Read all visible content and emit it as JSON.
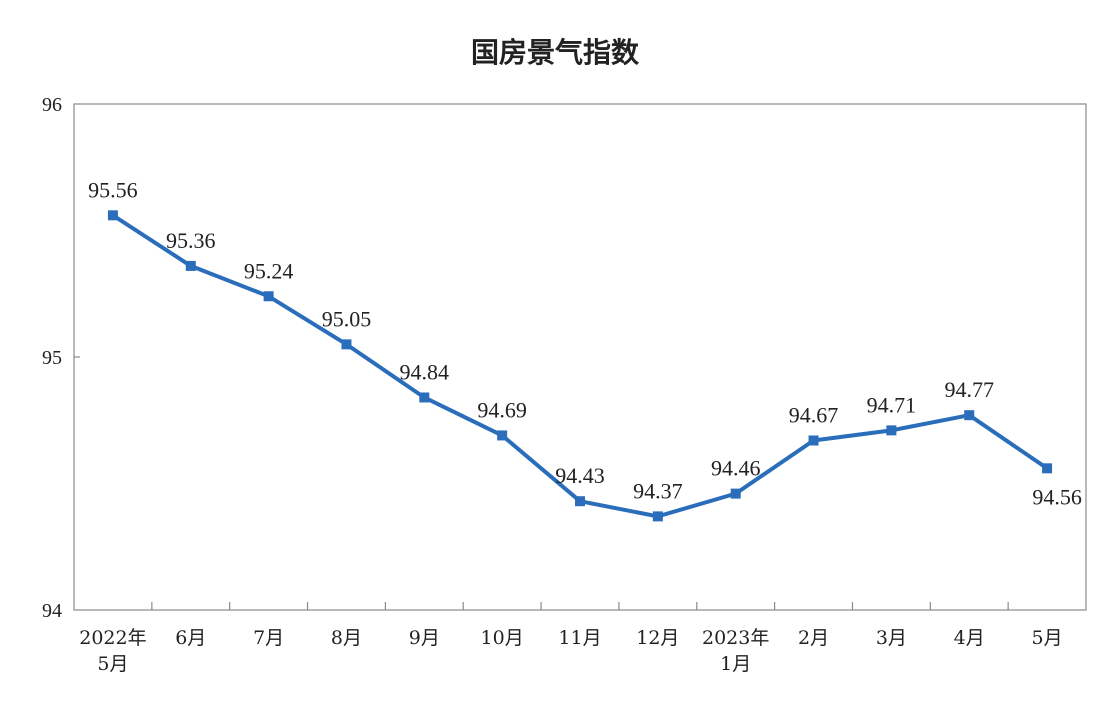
{
  "chart_data": {
    "type": "line",
    "title": "国房景气指数",
    "xlabel": "",
    "ylabel": "",
    "ylim": [
      94,
      96
    ],
    "yticks": [
      "94",
      "95",
      "96"
    ],
    "grid": false,
    "legend": "none",
    "categories": [
      [
        "2022年",
        "5月"
      ],
      [
        "6月"
      ],
      [
        "7月"
      ],
      [
        "8月"
      ],
      [
        "9月"
      ],
      [
        "10月"
      ],
      [
        "11月"
      ],
      [
        "12月"
      ],
      [
        "2023年",
        "1月"
      ],
      [
        "2月"
      ],
      [
        "3月"
      ],
      [
        "4月"
      ],
      [
        "5月"
      ]
    ],
    "series": [
      {
        "values": [
          95.56,
          95.36,
          95.24,
          95.05,
          94.84,
          94.69,
          94.43,
          94.37,
          94.46,
          94.67,
          94.71,
          94.77,
          94.56
        ],
        "labels": [
          "95.56",
          "95.36",
          "95.24",
          "95.05",
          "94.84",
          "94.69",
          "94.43",
          "94.37",
          "94.46",
          "94.67",
          "94.71",
          "94.77",
          "94.56"
        ],
        "color": "#2a6ebb"
      }
    ]
  }
}
